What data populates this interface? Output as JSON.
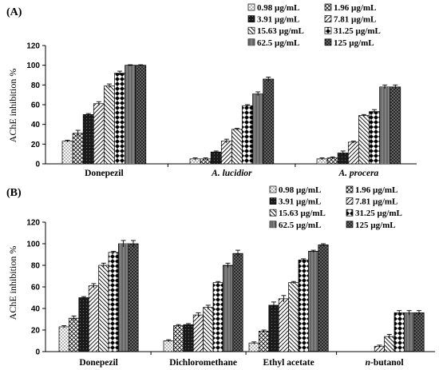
{
  "figure": {
    "panels": [
      {
        "label": "(A)",
        "ylabel": "AChE inhibition %"
      },
      {
        "label": "(B)",
        "ylabel": "AChE inhibition %"
      }
    ]
  },
  "legend": {
    "series": [
      "0.98 µg/mL",
      "1.96 µg/mL",
      "3.91 µg/mL",
      "7.81 µg/mL",
      "15.63 µg/mL",
      "31.25 µg/mL",
      "62.5 µg/mL",
      "125 µg/mL"
    ]
  },
  "chart_data": [
    {
      "type": "bar",
      "panel": "(A)",
      "ylabel": "AChE inhibition %",
      "ylim": [
        0,
        120
      ],
      "yticks": [
        0,
        20,
        40,
        60,
        80,
        100,
        120
      ],
      "grid": false,
      "legend_position": "top-right",
      "categories": [
        "Donepezil",
        "A. lucidior",
        "A. procera"
      ],
      "categories_italic": [
        false,
        true,
        true
      ],
      "series": [
        {
          "name": "0.98 µg/mL",
          "values": [
            23,
            5,
            5
          ],
          "errors": [
            1,
            1,
            1
          ]
        },
        {
          "name": "1.96 µg/mL",
          "values": [
            31,
            5,
            6
          ],
          "errors": [
            3,
            1,
            1
          ]
        },
        {
          "name": "3.91 µg/mL",
          "values": [
            50,
            12,
            11
          ],
          "errors": [
            1,
            1,
            2
          ]
        },
        {
          "name": "7.81 µg/mL",
          "values": [
            61,
            23,
            22
          ],
          "errors": [
            2,
            2,
            1
          ]
        },
        {
          "name": "15.63 µg/mL",
          "values": [
            79,
            35,
            49
          ],
          "errors": [
            2,
            1,
            1
          ]
        },
        {
          "name": "31.25 µg/mL",
          "values": [
            92,
            59,
            53
          ],
          "errors": [
            2,
            1,
            2
          ]
        },
        {
          "name": "62.5 µg/mL",
          "values": [
            100,
            71,
            78
          ],
          "errors": [
            0.5,
            2,
            2
          ]
        },
        {
          "name": "125 µg/mL",
          "values": [
            100,
            86,
            78
          ],
          "errors": [
            0.5,
            2,
            2
          ]
        }
      ]
    },
    {
      "type": "bar",
      "panel": "(B)",
      "ylabel": "AChE inhibition %",
      "ylim": [
        0,
        120
      ],
      "yticks": [
        0,
        20,
        40,
        60,
        80,
        100,
        120
      ],
      "grid": false,
      "legend_position": "top-right",
      "categories": [
        "Donepezil",
        "Dichloromethane",
        "Ethyl acetate",
        "n-butanol"
      ],
      "categories_italic_prefix": [
        false,
        false,
        false,
        true
      ],
      "series": [
        {
          "name": "0.98 µg/mL",
          "values": [
            23,
            10,
            8,
            0
          ],
          "errors": [
            1,
            1,
            1,
            0
          ]
        },
        {
          "name": "1.96 µg/mL",
          "values": [
            31,
            24,
            19,
            0
          ],
          "errors": [
            2,
            1,
            1,
            0
          ]
        },
        {
          "name": "3.91 µg/mL",
          "values": [
            50,
            25,
            43,
            0
          ],
          "errors": [
            1,
            1,
            3,
            0
          ]
        },
        {
          "name": "7.81 µg/mL",
          "values": [
            61,
            34,
            49,
            5
          ],
          "errors": [
            2,
            2,
            3,
            1
          ]
        },
        {
          "name": "15.63 µg/mL",
          "values": [
            80,
            41,
            64,
            14
          ],
          "errors": [
            2,
            2,
            1,
            2
          ]
        },
        {
          "name": "31.25 µg/mL",
          "values": [
            92,
            64,
            85,
            36
          ],
          "errors": [
            1,
            1,
            1,
            2
          ]
        },
        {
          "name": "62.5 µg/mL",
          "values": [
            100,
            80,
            93,
            36
          ],
          "errors": [
            3,
            2,
            1,
            2
          ]
        },
        {
          "name": "125 µg/mL",
          "values": [
            100,
            91,
            99,
            36
          ],
          "errors": [
            3,
            3,
            1,
            2
          ]
        }
      ]
    }
  ]
}
